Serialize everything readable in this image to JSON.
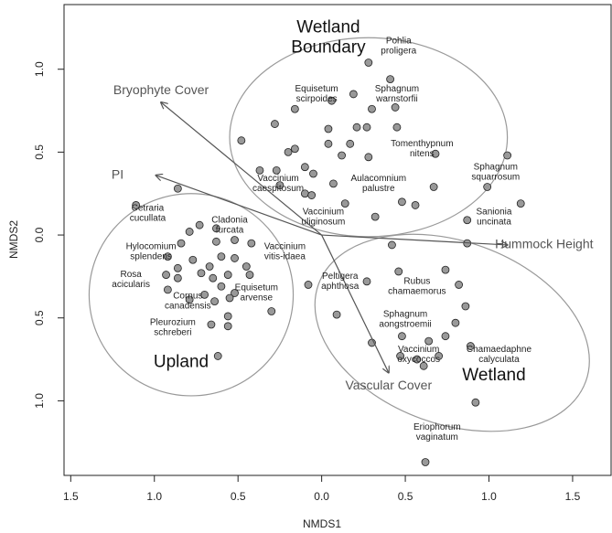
{
  "chart_data": {
    "type": "scatter",
    "xlabel": "NMDS1",
    "ylabel": "NMDS2",
    "xlim": [
      -1.54,
      1.73
    ],
    "ylim": [
      -1.45,
      1.39
    ],
    "xticks": [
      {
        "value": -1.5,
        "label": "1.5"
      },
      {
        "value": -1.0,
        "label": "1.0"
      },
      {
        "value": -0.5,
        "label": "0.5"
      },
      {
        "value": 0.0,
        "label": "0.0"
      },
      {
        "value": 0.5,
        "label": "0.5"
      },
      {
        "value": 1.0,
        "label": "1.0"
      },
      {
        "value": 1.5,
        "label": "1.5"
      }
    ],
    "yticks": [
      {
        "value": -1.0,
        "label": "1.0"
      },
      {
        "value": -0.5,
        "label": "0.5"
      },
      {
        "value": 0.0,
        "label": "0.0"
      },
      {
        "value": 0.5,
        "label": "0.5"
      },
      {
        "value": 1.0,
        "label": "1.0"
      }
    ],
    "color": "#999999",
    "x": [
      0.28,
      0.41,
      0.19,
      0.06,
      0.44,
      0.3,
      -0.28,
      -0.16,
      0.04,
      0.21,
      0.27,
      0.45,
      -0.48,
      -0.2,
      -0.16,
      0.04,
      0.17,
      0.28,
      0.68,
      1.11,
      -0.37,
      -0.27,
      0.12,
      -0.1,
      -0.05,
      -0.25,
      -0.1,
      -0.06,
      0.07,
      0.14,
      0.32,
      0.48,
      0.56,
      0.67,
      0.99,
      1.19,
      0.87,
      -0.86,
      -1.11,
      -0.73,
      -0.79,
      -0.63,
      -0.52,
      -0.42,
      -0.84,
      -0.63,
      -0.92,
      -0.77,
      -0.67,
      -0.6,
      -0.52,
      -0.45,
      -0.86,
      -0.93,
      -0.86,
      -0.72,
      -0.65,
      -0.56,
      -0.43,
      -0.92,
      -0.7,
      -0.6,
      -0.52,
      -0.79,
      -0.55,
      -0.64,
      -0.08,
      -0.56,
      -0.66,
      -0.56,
      -0.3,
      -0.62,
      0.42,
      0.27,
      0.46,
      0.74,
      0.82,
      0.86,
      0.8,
      0.48,
      0.64,
      0.74,
      0.89,
      0.47,
      0.57,
      0.7,
      0.61,
      0.09,
      0.3,
      0.92,
      0.62,
      0.87
    ],
    "y": [
      1.04,
      0.94,
      0.85,
      0.81,
      0.77,
      0.76,
      0.67,
      0.76,
      0.64,
      0.65,
      0.65,
      0.65,
      0.57,
      0.5,
      0.52,
      0.55,
      0.55,
      0.47,
      0.49,
      0.48,
      0.39,
      0.39,
      0.48,
      0.41,
      0.37,
      0.3,
      0.25,
      0.24,
      0.31,
      0.19,
      0.11,
      0.2,
      0.18,
      0.29,
      0.29,
      0.19,
      0.09,
      0.28,
      0.18,
      0.06,
      0.02,
      0.04,
      -0.03,
      -0.05,
      -0.05,
      -0.04,
      -0.13,
      -0.15,
      -0.19,
      -0.13,
      -0.14,
      -0.19,
      -0.2,
      -0.24,
      -0.26,
      -0.23,
      -0.26,
      -0.24,
      -0.24,
      -0.33,
      -0.36,
      -0.31,
      -0.35,
      -0.39,
      -0.38,
      -0.4,
      -0.3,
      -0.49,
      -0.54,
      -0.55,
      -0.46,
      -0.73,
      -0.06,
      -0.28,
      -0.22,
      -0.21,
      -0.3,
      -0.43,
      -0.53,
      -0.61,
      -0.64,
      -0.61,
      -0.67,
      -0.73,
      -0.75,
      -0.73,
      -0.79,
      -0.48,
      -0.65,
      -1.01,
      -1.37,
      -0.05
    ],
    "vectors": [
      {
        "name": "Bryophyte Cover",
        "x": -0.96,
        "y": 0.8,
        "label_x": -0.96,
        "label_y": 0.87
      },
      {
        "name": "PI",
        "x": -0.99,
        "y": 0.36,
        "label_x": -1.22,
        "label_y": 0.36
      },
      {
        "name": "Hummock Height",
        "x": 1.11,
        "y": -0.06,
        "label_x": 1.33,
        "label_y": -0.06
      },
      {
        "name": "Vascular Cover",
        "x": 0.4,
        "y": -0.83,
        "label_x": 0.4,
        "label_y": -0.91
      }
    ],
    "groups": [
      {
        "name": [
          "Wetland",
          "Boundary"
        ],
        "cx": 0.28,
        "cy": 0.59,
        "rx": 0.83,
        "ry": 0.6,
        "angle": 0,
        "label_x": 0.04,
        "label_y": 1.19
      },
      {
        "name": [
          "Upland"
        ],
        "cx": -0.78,
        "cy": -0.36,
        "rx": 0.61,
        "ry": 0.61,
        "angle": 0,
        "label_x": -0.84,
        "label_y": -0.77
      },
      {
        "name": [
          "Wetland"
        ],
        "cx": 0.78,
        "cy": -0.59,
        "rx": 0.85,
        "ry": 0.55,
        "angle": -20,
        "label_x": 1.03,
        "label_y": -0.85
      }
    ],
    "annotations": [
      {
        "lines": [
          "Pohlia",
          "proligera"
        ],
        "x": 0.46,
        "y": 1.14
      },
      {
        "lines": [
          "Equisetum",
          "scirpoides"
        ],
        "x": -0.03,
        "y": 0.85
      },
      {
        "lines": [
          "Sphagnum",
          "warnstorfii"
        ],
        "x": 0.45,
        "y": 0.85
      },
      {
        "lines": [
          "Tomenthypnum",
          "nitens"
        ],
        "x": 0.6,
        "y": 0.52
      },
      {
        "lines": [
          "Sphagnum",
          "squarrosum"
        ],
        "x": 1.04,
        "y": 0.38
      },
      {
        "lines": [
          "Vaccinium",
          "caespitosum"
        ],
        "x": -0.26,
        "y": 0.31
      },
      {
        "lines": [
          "Aulacomnium",
          "palustre"
        ],
        "x": 0.34,
        "y": 0.31
      },
      {
        "lines": [
          "Vaccinium",
          "uliginosum"
        ],
        "x": 0.01,
        "y": 0.11
      },
      {
        "lines": [
          "Sanionia",
          "uncinata"
        ],
        "x": 1.03,
        "y": 0.11
      },
      {
        "lines": [
          "Cetraria",
          "cucullata"
        ],
        "x": -1.04,
        "y": 0.13
      },
      {
        "lines": [
          "Cladonia",
          "furcata"
        ],
        "x": -0.55,
        "y": 0.06
      },
      {
        "lines": [
          "Hylocomium",
          "splendens"
        ],
        "x": -1.02,
        "y": -0.1
      },
      {
        "lines": [
          "Vaccinium",
          "vitis-idaea"
        ],
        "x": -0.22,
        "y": -0.1
      },
      {
        "lines": [
          "Rosa",
          "acicularis"
        ],
        "x": -1.14,
        "y": -0.27
      },
      {
        "lines": [
          "Equisetum",
          "arvense"
        ],
        "x": -0.39,
        "y": -0.35
      },
      {
        "lines": [
          "Cornus",
          "canadensis"
        ],
        "x": -0.8,
        "y": -0.4
      },
      {
        "lines": [
          "Pleurozium",
          "schreberi"
        ],
        "x": -0.89,
        "y": -0.56
      },
      {
        "lines": [
          "Peltigera",
          "aphthosa"
        ],
        "x": 0.11,
        "y": -0.28
      },
      {
        "lines": [
          "Rubus",
          "chamaemorus"
        ],
        "x": 0.57,
        "y": -0.31
      },
      {
        "lines": [
          "Sphagnum",
          "aongstroemii"
        ],
        "x": 0.5,
        "y": -0.51
      },
      {
        "lines": [
          "Vaccinium",
          "oxycoccos"
        ],
        "x": 0.58,
        "y": -0.72
      },
      {
        "lines": [
          "Chamaedaphne",
          "calyculata"
        ],
        "x": 1.06,
        "y": -0.72
      },
      {
        "lines": [
          "Eriophorum",
          "vaginatum"
        ],
        "x": 0.69,
        "y": -1.19
      }
    ]
  }
}
